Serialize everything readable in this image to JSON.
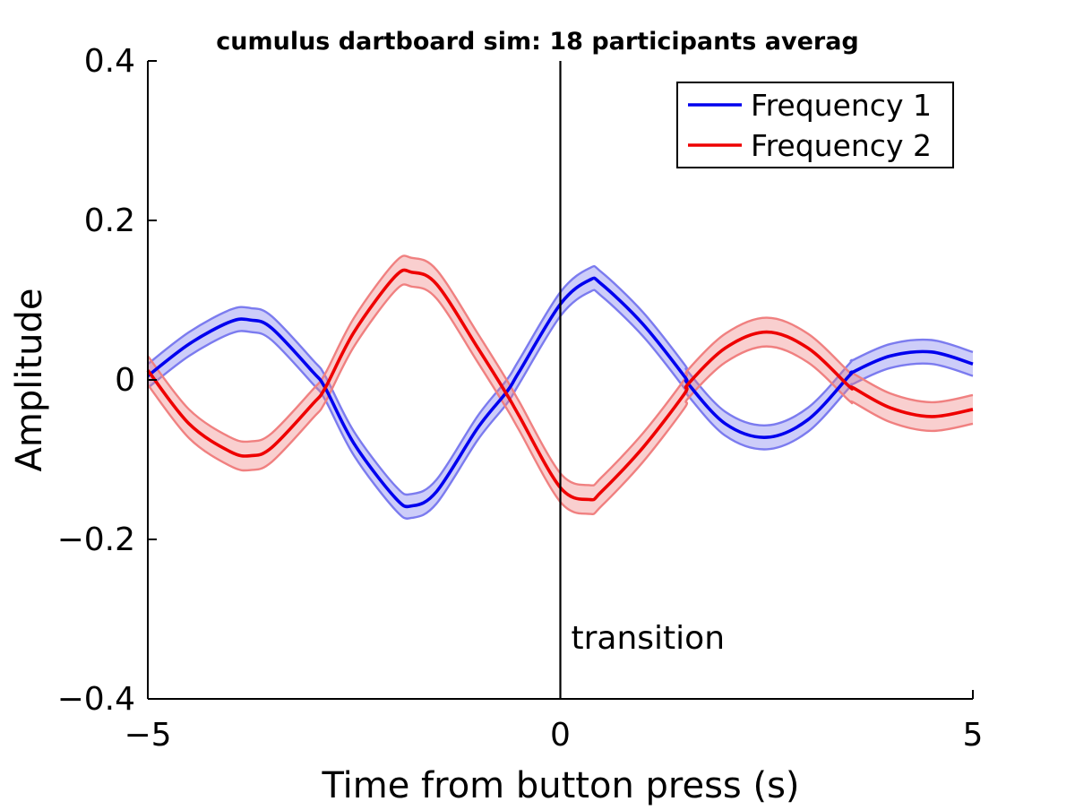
{
  "chart_data": {
    "type": "line",
    "title": "cumulus dartboard sim: 18 participants averag",
    "xlabel": "Time from button press (s)",
    "ylabel": "Amplitude",
    "xlim": [
      -5,
      5
    ],
    "ylim": [
      -0.4,
      0.4
    ],
    "x_ticks": [
      -5,
      0,
      5
    ],
    "x_tick_labels": [
      "−5",
      "0",
      "5"
    ],
    "y_ticks": [
      0.4,
      0.2,
      0,
      -0.2,
      -0.4
    ],
    "y_tick_labels": [
      "0.4",
      "0.2",
      "0",
      "−0.2",
      "−0.4"
    ],
    "grid": false,
    "legend_position": "top-right",
    "x": [
      -5,
      -4.5,
      -4,
      -3.75,
      -3.5,
      -3,
      -2.85,
      -2.5,
      -2,
      -1.8,
      -1.5,
      -1,
      -0.65,
      -0.5,
      0,
      0.35,
      0.5,
      1,
      1.5,
      1.55,
      2,
      2.5,
      3,
      3.5,
      3.55,
      4,
      4.5,
      5
    ],
    "series": [
      {
        "name": "Frequency 1",
        "color": "#0000ee",
        "band_color": "#7b7bef",
        "values": [
          0.005,
          0.045,
          0.073,
          0.075,
          0.065,
          0.01,
          -0.01,
          -0.08,
          -0.148,
          -0.158,
          -0.14,
          -0.06,
          -0.015,
          0.01,
          0.095,
          0.125,
          0.12,
          0.07,
          0.005,
          -0.005,
          -0.055,
          -0.072,
          -0.05,
          0.005,
          0.01,
          0.03,
          0.035,
          0.02
        ],
        "band_halfwidth": 0.015
      },
      {
        "name": "Frequency 2",
        "color": "#ee0000",
        "band_color": "#f08080",
        "values": [
          0.012,
          -0.055,
          -0.09,
          -0.095,
          -0.085,
          -0.03,
          -0.01,
          0.06,
          0.13,
          0.135,
          0.12,
          0.04,
          -0.018,
          -0.045,
          -0.135,
          -0.15,
          -0.14,
          -0.085,
          -0.018,
          -0.005,
          0.04,
          0.06,
          0.04,
          -0.008,
          -0.01,
          -0.035,
          -0.046,
          -0.037
        ],
        "band_halfwidth": 0.018
      }
    ],
    "annotations": [
      {
        "text": "transition",
        "x": 0,
        "type": "vline",
        "color": "#000000"
      }
    ]
  }
}
